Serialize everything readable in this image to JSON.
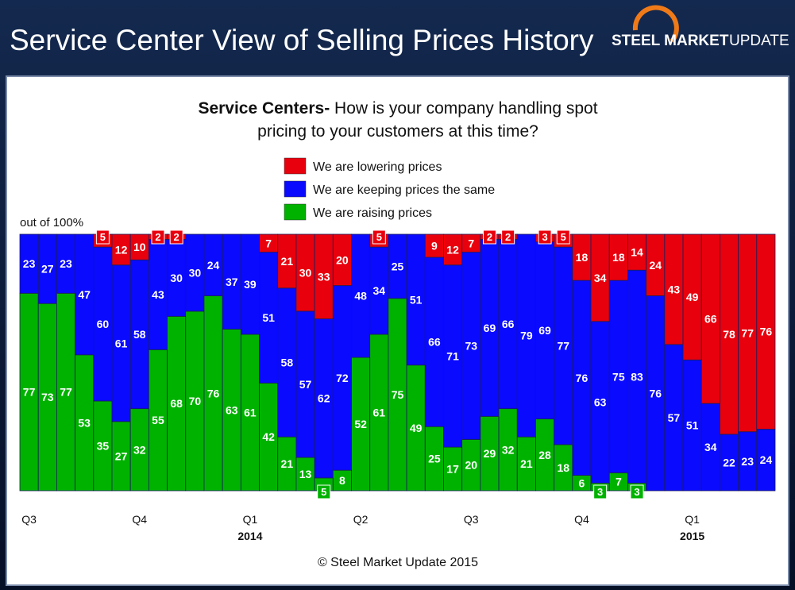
{
  "header": {
    "title": "Service Center View of Selling Prices History",
    "logo_bold": "STEEL MARKET",
    "logo_light": "UPDATE"
  },
  "footer": "© Steel Market Update 2015",
  "chart_data": {
    "type": "stacked_bar",
    "title_prefix": "Service Centers-",
    "title": "How is your company handling spot pricing to your customers at this time?",
    "y_label": "out of 100%",
    "ylim": [
      0,
      100
    ],
    "categories": [
      "Q3",
      null,
      null,
      null,
      null,
      null,
      "Q4",
      null,
      null,
      null,
      null,
      null,
      "Q1",
      null,
      null,
      null,
      null,
      null,
      "Q2",
      null,
      null,
      null,
      null,
      null,
      "Q3",
      null,
      null,
      null,
      null,
      null,
      "Q4",
      null,
      null,
      null,
      null,
      null,
      "Q1",
      null,
      null,
      null,
      null
    ],
    "years": [
      null,
      null,
      null,
      null,
      null,
      null,
      null,
      null,
      null,
      null,
      null,
      null,
      "2014",
      null,
      null,
      null,
      null,
      null,
      null,
      null,
      null,
      null,
      null,
      null,
      null,
      null,
      null,
      null,
      null,
      null,
      null,
      null,
      null,
      null,
      null,
      null,
      "2015",
      null,
      null,
      null,
      null
    ],
    "series": [
      {
        "name": "We are lowering prices",
        "color": "#e8000d",
        "values": [
          0,
          0,
          0,
          0,
          5,
          12,
          10,
          2,
          2,
          0,
          0,
          0,
          0,
          7,
          21,
          30,
          33,
          20,
          0,
          5,
          0,
          0,
          9,
          12,
          7,
          2,
          2,
          0,
          3,
          5,
          18,
          34,
          18,
          14,
          24,
          43,
          49,
          66,
          78,
          77,
          76
        ]
      },
      {
        "name": "We are keeping prices the same",
        "color": "#0a0aff",
        "values": [
          23,
          27,
          23,
          47,
          60,
          61,
          58,
          43,
          30,
          30,
          24,
          37,
          39,
          51,
          58,
          57,
          62,
          72,
          48,
          34,
          25,
          51,
          66,
          71,
          73,
          69,
          66,
          79,
          69,
          77,
          76,
          63,
          75,
          83,
          76,
          57,
          51,
          34,
          22,
          23,
          24
        ]
      },
      {
        "name": "We are raising prices",
        "color": "#00b200",
        "values": [
          77,
          73,
          77,
          53,
          35,
          27,
          32,
          55,
          68,
          70,
          76,
          63,
          61,
          42,
          21,
          13,
          5,
          8,
          52,
          61,
          75,
          49,
          25,
          17,
          20,
          29,
          32,
          21,
          28,
          18,
          6,
          3,
          7,
          3,
          0,
          0,
          0,
          0,
          0,
          0,
          0
        ]
      }
    ]
  }
}
